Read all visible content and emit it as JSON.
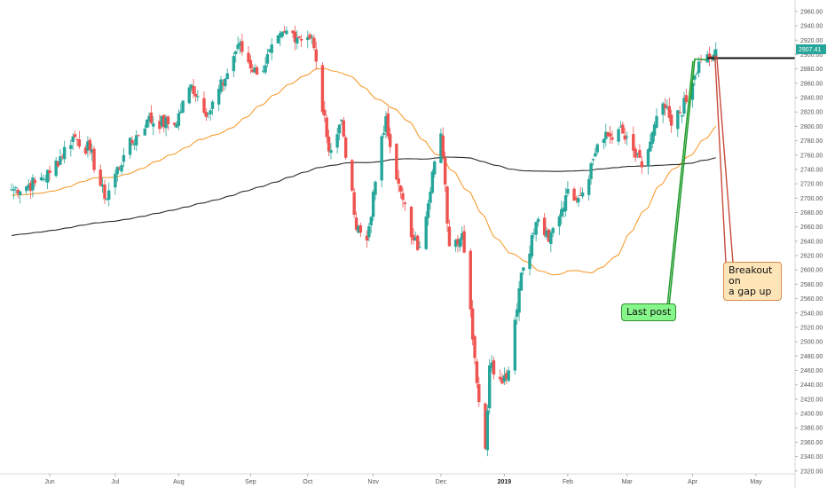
{
  "chart_data": {
    "type": "candlestick",
    "title": "",
    "xlabel": "",
    "ylabel": "",
    "ylim": [
      2316,
      2976
    ],
    "y_ticks": [
      2320,
      2340,
      2360,
      2380,
      2400,
      2420,
      2440,
      2460,
      2480,
      2500,
      2520,
      2540,
      2560,
      2580,
      2600,
      2620,
      2640,
      2660,
      2680,
      2700,
      2720,
      2740,
      2760,
      2780,
      2800,
      2820,
      2840,
      2860,
      2880,
      2900,
      2920,
      2940,
      2960
    ],
    "y_tick_labels": [
      "2320.00",
      "2340.00",
      "2360.00",
      "2380.00",
      "2400.00",
      "2420.00",
      "2440.00",
      "2460.00",
      "2480.00",
      "2500.00",
      "2520.00",
      "2540.00",
      "2560.00",
      "2580.00",
      "2600.00",
      "2620.00",
      "2640.00",
      "2660.00",
      "2680.00",
      "2700.00",
      "2720.00",
      "2740.00",
      "2760.00",
      "2780.00",
      "2800.00",
      "2820.00",
      "2840.00",
      "2860.00",
      "2880.00",
      "2900.00",
      "2920.00",
      "2940.00",
      "2960.00"
    ],
    "x_ticks": [
      {
        "label": "Jun",
        "bold": false,
        "x": "2018-06-01"
      },
      {
        "label": "Jul",
        "bold": false,
        "x": "2018-07-02"
      },
      {
        "label": "Aug",
        "bold": false,
        "x": "2018-08-01"
      },
      {
        "label": "Sep",
        "bold": false,
        "x": "2018-09-04"
      },
      {
        "label": "Oct",
        "bold": false,
        "x": "2018-10-01"
      },
      {
        "label": "Nov",
        "bold": false,
        "x": "2018-11-01"
      },
      {
        "label": "Dec",
        "bold": false,
        "x": "2018-12-03"
      },
      {
        "label": "2019",
        "bold": true,
        "x": "2019-01-02"
      },
      {
        "label": "Feb",
        "bold": false,
        "x": "2019-02-01"
      },
      {
        "label": "Mar",
        "bold": false,
        "x": "2019-03-01"
      },
      {
        "label": "Apr",
        "bold": false,
        "x": "2019-04-01"
      },
      {
        "label": "May",
        "bold": false,
        "x": "2019-05-01"
      }
    ],
    "close_anchors": [
      [
        "2018-05-14",
        2712
      ],
      [
        "2018-05-25",
        2721
      ],
      [
        "2018-06-01",
        2735
      ],
      [
        "2018-06-12",
        2786
      ],
      [
        "2018-06-20",
        2767
      ],
      [
        "2018-06-27",
        2699
      ],
      [
        "2018-07-06",
        2760
      ],
      [
        "2018-07-17",
        2809
      ],
      [
        "2018-07-30",
        2802
      ],
      [
        "2018-08-07",
        2858
      ],
      [
        "2018-08-15",
        2818
      ],
      [
        "2018-08-24",
        2874
      ],
      [
        "2018-08-29",
        2914
      ],
      [
        "2018-09-07",
        2872
      ],
      [
        "2018-09-20",
        2931
      ],
      [
        "2018-10-01",
        2924
      ],
      [
        "2018-10-03",
        2925
      ],
      [
        "2018-10-10",
        2785
      ],
      [
        "2018-10-12",
        2767
      ],
      [
        "2018-10-17",
        2809
      ],
      [
        "2018-10-24",
        2656
      ],
      [
        "2018-10-29",
        2641
      ],
      [
        "2018-11-02",
        2723
      ],
      [
        "2018-11-07",
        2814
      ],
      [
        "2018-11-12",
        2726
      ],
      [
        "2018-11-20",
        2641
      ],
      [
        "2018-11-23",
        2632
      ],
      [
        "2018-11-29",
        2737
      ],
      [
        "2018-12-03",
        2790
      ],
      [
        "2018-12-07",
        2633
      ],
      [
        "2018-12-13",
        2651
      ],
      [
        "2018-12-17",
        2545
      ],
      [
        "2018-12-21",
        2416
      ],
      [
        "2018-12-24",
        2351
      ],
      [
        "2018-12-26",
        2467
      ],
      [
        "2019-01-03",
        2448
      ],
      [
        "2019-01-10",
        2596
      ],
      [
        "2019-01-18",
        2671
      ],
      [
        "2019-01-23",
        2639
      ],
      [
        "2019-01-31",
        2704
      ],
      [
        "2019-02-08",
        2708
      ],
      [
        "2019-02-15",
        2775
      ],
      [
        "2019-02-25",
        2796
      ],
      [
        "2019-03-08",
        2743
      ],
      [
        "2019-03-18",
        2832
      ],
      [
        "2019-03-22",
        2801
      ],
      [
        "2019-03-29",
        2834
      ],
      [
        "2019-04-05",
        2893
      ],
      [
        "2019-04-10",
        2895
      ],
      [
        "2019-04-12",
        2907.41
      ]
    ],
    "series": [
      {
        "type": "ma",
        "period": 50,
        "color": "#f7931e"
      },
      {
        "type": "ma",
        "period": 200,
        "color": "#2b2b2b"
      }
    ],
    "last_price": "2907.41",
    "resistance_level": 2895,
    "resistance_start": "2019-04-08"
  },
  "annotations": {
    "last_post": "Last post",
    "breakout": "Breakout on\na gap up"
  },
  "colors": {
    "up": "#26a69a",
    "down": "#ef5350",
    "ma50": "#f7931e",
    "ma200": "#2b2b2b",
    "last_price_bg": "#26a69a",
    "arrow_green": "#1f9b2c",
    "arrow_red": "#c94b3a"
  }
}
